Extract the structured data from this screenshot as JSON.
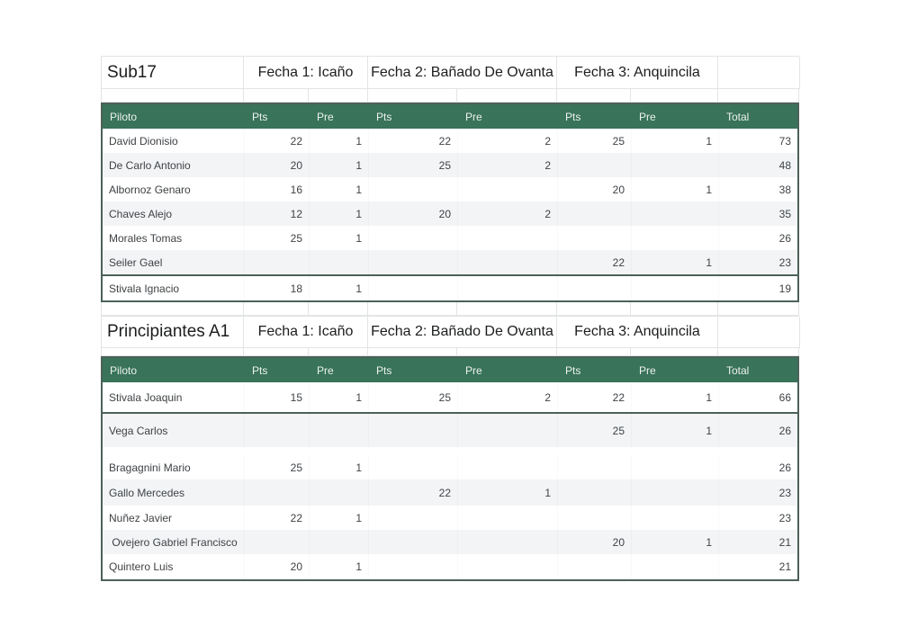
{
  "colors": {
    "header_bg": "#38735a",
    "header_text": "#eef2ef",
    "row_stripe": "#f2f4f6",
    "table_border": "#4c6159",
    "grid_line": "#e2e4e6",
    "title_text": "#1c1d1e",
    "cell_text": "#3f4245",
    "page_bg": "#ffffff"
  },
  "shared_header": {
    "pilot": "Piloto",
    "pts": "Pts",
    "pre": "Pre",
    "total": "Total"
  },
  "tables": [
    {
      "category": "Sub17",
      "events": [
        "Fecha 1: Icaño",
        "Fecha 2: Bañado De Ovanta",
        "Fecha 3: Anquincila"
      ],
      "rows": [
        {
          "pilot": "David Dionisio",
          "values": [
            "22",
            "1",
            "22",
            "2",
            "25",
            "1"
          ],
          "total": "73"
        },
        {
          "pilot": "De Carlo Antonio",
          "values": [
            "20",
            "1",
            "25",
            "2",
            "",
            ""
          ],
          "total": "48"
        },
        {
          "pilot": "Albornoz Genaro",
          "values": [
            "16",
            "1",
            "",
            "",
            "20",
            "1"
          ],
          "total": "38"
        },
        {
          "pilot": "Chaves Alejo",
          "values": [
            "12",
            "1",
            "20",
            "2",
            "",
            ""
          ],
          "total": "35"
        },
        {
          "pilot": "Morales Tomas",
          "values": [
            "25",
            "1",
            "",
            "",
            "",
            ""
          ],
          "total": "26"
        },
        {
          "pilot": "Seiler Gael",
          "values": [
            "",
            "",
            "",
            "",
            "22",
            "1"
          ],
          "total": "23"
        },
        {
          "pilot": "Stivala Ignacio",
          "values": [
            "18",
            "1",
            "",
            "",
            "",
            ""
          ],
          "total": "19"
        }
      ]
    },
    {
      "category": "Principiantes A1",
      "events": [
        "Fecha 1: Icaño",
        "Fecha 2: Bañado De Ovanta",
        "Fecha 3: Anquincila"
      ],
      "rows": [
        {
          "pilot": "Stivala Joaquin",
          "values": [
            "15",
            "1",
            "25",
            "2",
            "22",
            "1"
          ],
          "total": "66"
        },
        {
          "pilot": "Vega Carlos",
          "values": [
            "",
            "",
            "",
            "",
            "25",
            "1"
          ],
          "total": "26"
        },
        {
          "pilot": "Bragagnini Mario",
          "values": [
            "25",
            "1",
            "",
            "",
            "",
            ""
          ],
          "total": "26"
        },
        {
          "pilot": "Gallo Mercedes",
          "values": [
            "",
            "",
            "22",
            "1",
            "",
            ""
          ],
          "total": "23"
        },
        {
          "pilot": "Nuñez Javier",
          "values": [
            "22",
            "1",
            "",
            "",
            "",
            ""
          ],
          "total": "23"
        },
        {
          "pilot": " Ovejero Gabriel Francisco",
          "values": [
            "",
            "",
            "",
            "",
            "20",
            "1"
          ],
          "total": "21"
        },
        {
          "pilot": "Quintero Luis",
          "values": [
            "20",
            "1",
            "",
            "",
            "",
            ""
          ],
          "total": "21"
        }
      ]
    }
  ]
}
